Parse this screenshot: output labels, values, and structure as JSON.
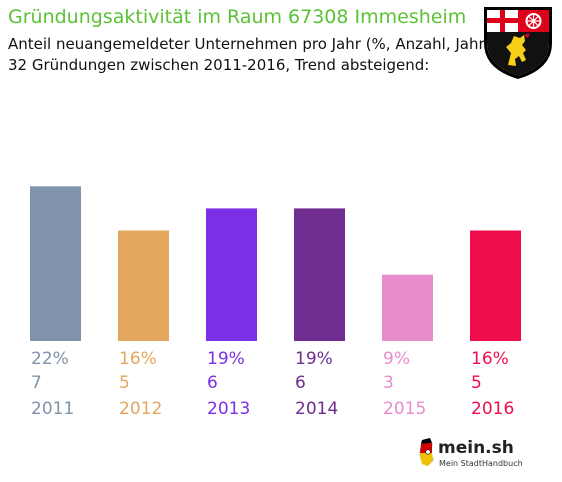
{
  "header": {
    "title": "Gründungsaktivität im Raum 67308 Immesheim",
    "subtitle_line1": "Anteil neuangemeldeter Unternehmen pro Jahr (%, Anzahl, Jahr)",
    "subtitle_line2": "32 Gründungen zwischen 2011-2016, Trend absteigend:"
  },
  "crest": {
    "icon": "rheinland-pfalz-coat-of-arms-icon"
  },
  "logo": {
    "name": "mein.sh",
    "tagline": "Mein StadtHandbuch"
  },
  "chart_data": {
    "type": "bar",
    "categories": [
      "2011",
      "2012",
      "2013",
      "2014",
      "2015",
      "2016"
    ],
    "percent_labels": [
      "22%",
      "16%",
      "19%",
      "19%",
      "9%",
      "16%"
    ],
    "values": [
      7,
      5,
      6,
      6,
      3,
      5
    ],
    "colors": [
      "#7f93aa",
      "#e3a65c",
      "#7b2fe6",
      "#6f2d8f",
      "#e88ccb",
      "#ef0e4d"
    ],
    "grid": false,
    "legend": "none"
  }
}
